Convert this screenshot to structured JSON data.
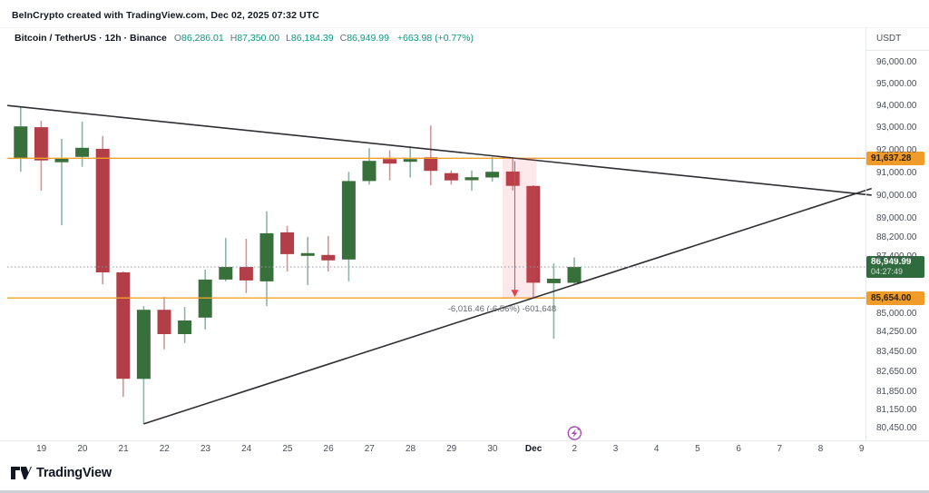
{
  "header": {
    "creator_line": "BeInCrypto created with TradingView.com, Dec 02, 2025 07:32 UTC",
    "symbol": {
      "title": "Bitcoin / TetherUS · 12h · Binance",
      "ohlc": [
        {
          "label": "O",
          "value": "86,286.01"
        },
        {
          "label": "H",
          "value": "87,350.00"
        },
        {
          "label": "L",
          "value": "86,184.39"
        },
        {
          "label": "C",
          "value": "86,949.99"
        }
      ],
      "change": "+663.98 (+0.77%)"
    }
  },
  "price_axis": {
    "currency_label": "USDT",
    "last_price": {
      "label": "86,949.99",
      "countdown": "04:27:49"
    },
    "ticks": [
      {
        "label": "96,000.00",
        "value": 96000
      },
      {
        "label": "95,000.00",
        "value": 95000
      },
      {
        "label": "94,000.00",
        "value": 94000
      },
      {
        "label": "93,000.00",
        "value": 93000
      },
      {
        "label": "92,000.00",
        "value": 92000
      },
      {
        "label": "91,000.00",
        "value": 91000
      },
      {
        "label": "90,000.00",
        "value": 90000
      },
      {
        "label": "89,000.00",
        "value": 89000
      },
      {
        "label": "88,200.00",
        "value": 88200
      },
      {
        "label": "87,400.00",
        "value": 87400
      },
      {
        "label": "85,000.00",
        "value": 85000
      },
      {
        "label": "84,250.00",
        "value": 84250
      },
      {
        "label": "83,450.00",
        "value": 83450
      },
      {
        "label": "82,650.00",
        "value": 82650
      },
      {
        "label": "81,850.00",
        "value": 81850
      },
      {
        "label": "81,150.00",
        "value": 81150
      },
      {
        "label": "80,450.00",
        "value": 80450
      }
    ]
  },
  "time_axis": {
    "ticks": [
      {
        "label": "19"
      },
      {
        "label": "20"
      },
      {
        "label": "21"
      },
      {
        "label": "22"
      },
      {
        "label": "23"
      },
      {
        "label": "24"
      },
      {
        "label": "25"
      },
      {
        "label": "26"
      },
      {
        "label": "27"
      },
      {
        "label": "28"
      },
      {
        "label": "29"
      },
      {
        "label": "30"
      },
      {
        "label": "Dec",
        "bold": true
      },
      {
        "label": "2"
      },
      {
        "label": "3"
      },
      {
        "label": "4"
      },
      {
        "label": "5"
      },
      {
        "label": "6"
      },
      {
        "label": "7"
      },
      {
        "label": "8"
      },
      {
        "label": "9"
      }
    ]
  },
  "watermark": {
    "text": "TradingView"
  },
  "chart_data": {
    "type": "candlestick",
    "title": "Bitcoin / TetherUS 12h Binance",
    "scale": "log",
    "grid": false,
    "last_price": 86949.99,
    "y_axis_visible_range": [
      80000,
      96500
    ],
    "levels": [
      {
        "price": 91637.28,
        "label": "91,637.28"
      },
      {
        "price": 85654.0,
        "label": "85,654.00"
      }
    ],
    "trendlines": [
      {
        "name": "upper-descending",
        "from_bar": -0.65,
        "from_price": 94000,
        "to_bar": 41.5,
        "to_price": 90020
      },
      {
        "name": "lower-ascending",
        "from_bar": 6.0,
        "from_price": 80600,
        "to_bar": 41.5,
        "to_price": 90310
      }
    ],
    "measurement": {
      "label": "-6,016.46 (-6.56%) -601,648",
      "from_price": 91670.46,
      "to_price": 85654.0,
      "from_bar": 23.5,
      "to_bar": 25.15,
      "arrow_bar": 24.1
    },
    "event_icon": {
      "tick_index": 13,
      "kind": "lightning-event"
    },
    "candles": [
      {
        "t": "Nov 18 12:00",
        "ohlc": [
          91650,
          93930,
          91040,
          93060
        ]
      },
      {
        "t": "Nov 19 00:00",
        "ohlc": [
          93020,
          93310,
          90215,
          91540
        ]
      },
      {
        "t": "Nov 19 12:00",
        "ohlc": [
          91460,
          92500,
          88720,
          91615
        ]
      },
      {
        "t": "Nov 20 00:00",
        "ohlc": [
          91695,
          93270,
          91255,
          92100
        ]
      },
      {
        "t": "Nov 20 12:00",
        "ohlc": [
          92055,
          92625,
          86230,
          86720
        ]
      },
      {
        "t": "Nov 21 00:00",
        "ohlc": [
          86720,
          86760,
          81660,
          82375
        ]
      },
      {
        "t": "Nov 21 12:00",
        "ohlc": [
          82375,
          85320,
          80590,
          85170
        ]
      },
      {
        "t": "Nov 22 00:00",
        "ohlc": [
          85170,
          85700,
          83555,
          84175
        ]
      },
      {
        "t": "Nov 22 12:00",
        "ohlc": [
          84175,
          85285,
          83810,
          84730
        ]
      },
      {
        "t": "Nov 23 00:00",
        "ohlc": [
          84845,
          86835,
          84360,
          86420
        ]
      },
      {
        "t": "Nov 23 12:00",
        "ohlc": [
          86420,
          88175,
          86345,
          86950
        ]
      },
      {
        "t": "Nov 24 00:00",
        "ohlc": [
          86950,
          88140,
          85855,
          86385
        ]
      },
      {
        "t": "Nov 24 12:00",
        "ohlc": [
          86345,
          89320,
          85320,
          88375
        ]
      },
      {
        "t": "Nov 25 00:00",
        "ohlc": [
          88415,
          88690,
          86760,
          87490
        ]
      },
      {
        "t": "Nov 25 12:00",
        "ohlc": [
          87415,
          88220,
          86190,
          87530
        ]
      },
      {
        "t": "Nov 26 00:00",
        "ohlc": [
          87455,
          88260,
          86760,
          87225
        ]
      },
      {
        "t": "Nov 26 12:00",
        "ohlc": [
          87265,
          91035,
          86345,
          90635
        ]
      },
      {
        "t": "Nov 27 00:00",
        "ohlc": [
          90635,
          92085,
          90480,
          91520
        ]
      },
      {
        "t": "Nov 27 12:00",
        "ohlc": [
          91600,
          91990,
          90660,
          91400
        ]
      },
      {
        "t": "Nov 28 00:00",
        "ohlc": [
          91480,
          92170,
          90790,
          91600
        ]
      },
      {
        "t": "Nov 28 12:00",
        "ohlc": [
          91680,
          93100,
          90450,
          91080
        ]
      },
      {
        "t": "Nov 29 00:00",
        "ohlc": [
          90980,
          91100,
          90480,
          90660
        ]
      },
      {
        "t": "Nov 29 12:00",
        "ohlc": [
          90670,
          91100,
          90215,
          90800
        ]
      },
      {
        "t": "Nov 30 00:00",
        "ohlc": [
          90790,
          91700,
          90610,
          91040
        ]
      },
      {
        "t": "Nov 30 12:00",
        "ohlc": [
          91050,
          91670,
          90220,
          90420
        ]
      },
      {
        "t": "Dec 1 00:00",
        "ohlc": [
          90420,
          90450,
          85654,
          86290
        ]
      },
      {
        "t": "Dec 1 12:00",
        "ohlc": [
          86270,
          87100,
          83990,
          86455
        ]
      },
      {
        "t": "Dec 2 00:00",
        "ohlc": [
          86286.01,
          87350.0,
          86184.39,
          86949.99
        ]
      }
    ],
    "colors": {
      "up": "#38703c",
      "down": "#b23f47",
      "up_wick": "#8fb5a4",
      "down_wick": "#d59598",
      "level_line": "#f2a22b",
      "level_label_bg": "#f19b29",
      "last_price_label_bg": "#2f6b3c",
      "last_price_line": "#9096a0",
      "trendline": "#2e2e33",
      "measure_fill": "rgba(242,84,104,0.13)",
      "measure_arrow": "#e0444f",
      "event_icon": "#ab47bc",
      "positive_text": "#089981"
    }
  }
}
